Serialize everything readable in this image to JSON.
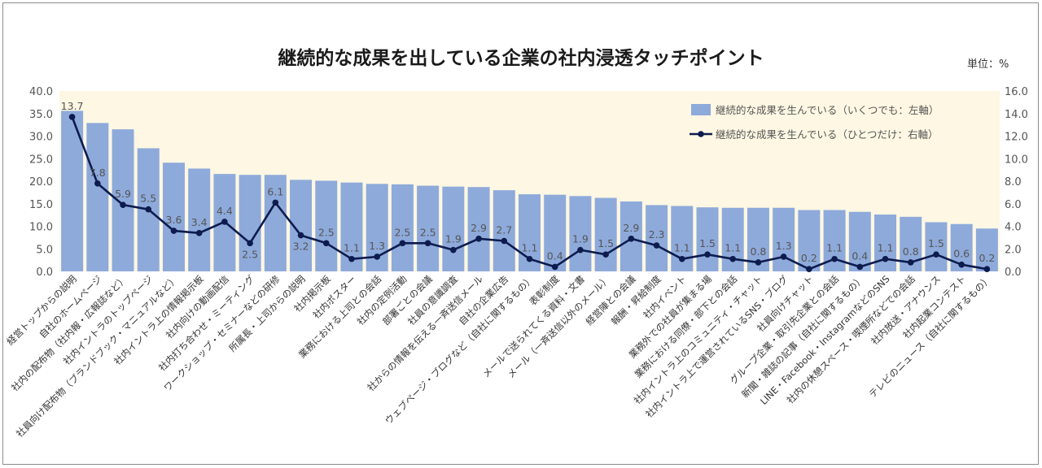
{
  "chart_data": {
    "type": "bar",
    "title": "継続的な成果を出している企業の社内浸透タッチポイント",
    "unit_label": "単位：%",
    "categories": [
      "経営トップからの説明",
      "自社のホームページ",
      "社内の配布物（社内報・広報誌など）",
      "社内イントラのトップページ",
      "社員向け配布物（ブランドブック・マニュアルなど）",
      "社内イントラ上の情報掲示板",
      "社内向けの動画配信",
      "社内打ち合わせ・ミーティング",
      "ワークショップ・セミナーなどの研修",
      "所属長・上司からの説明",
      "社内掲示板",
      "社内ポスター",
      "業務における上司との会話",
      "社内の定例活動",
      "部署ごとの会議",
      "社員の意識調査",
      "社からの情報を伝える一斉送信メール",
      "自社の企業広告",
      "ウェブページ・ブログなど（自社に関するもの）",
      "表彰制度",
      "メールで送られてくる資料・文書",
      "メール（一斉送信以外のメール）",
      "経営陣との会議",
      "報酬・昇給制度",
      "社内イベント",
      "業務外での社員が集まる場",
      "業務における同僚・部下との会話",
      "社内イントラ上のコミュニティ・チャット",
      "社内イントラ上で運営されているSNS・ブログ",
      "社員向けチャット",
      "グループ企業・取引先企業との会話",
      "新聞・雑誌の記事（自社に関するもの）",
      "LINE・Facebook・InstagramなどのSNS",
      "社内の休憩スペース・喫煙所などでの会話",
      "社内放送・アナウンス",
      "社内起業コンテスト",
      "テレビのニュース（自社に関するもの）"
    ],
    "series": [
      {
        "name": "継続的な成果を生んでいる（いくつでも：左軸）",
        "kind": "bar",
        "axis": "left",
        "color": "#8eaadb",
        "values": [
          35.6,
          32.9,
          31.5,
          27.3,
          24.1,
          22.8,
          21.6,
          21.4,
          21.4,
          20.3,
          20.1,
          19.7,
          19.4,
          19.3,
          19.0,
          18.8,
          18.7,
          18.0,
          17.1,
          17.0,
          16.7,
          16.3,
          15.5,
          14.7,
          14.5,
          14.2,
          14.1,
          14.1,
          14.1,
          13.6,
          13.6,
          13.2,
          12.6,
          12.1,
          10.9,
          10.5,
          9.5
        ]
      },
      {
        "name": "継続的な成果を生んでいる（ひとつだけ：右軸）",
        "kind": "line",
        "axis": "right",
        "color": "#0d1b4d",
        "values": [
          13.7,
          7.8,
          5.9,
          5.5,
          3.6,
          3.4,
          4.4,
          2.5,
          6.1,
          3.2,
          2.5,
          1.1,
          1.3,
          2.5,
          2.5,
          1.9,
          2.9,
          2.7,
          1.1,
          0.4,
          1.9,
          1.5,
          2.9,
          2.3,
          1.1,
          1.5,
          1.1,
          0.8,
          1.3,
          0.2,
          1.1,
          0.4,
          1.1,
          0.8,
          1.5,
          0.6,
          0.2
        ]
      }
    ],
    "line_labels": [
      "13.7",
      "7.8",
      "5.9",
      "5.5",
      "3.6",
      "3.4",
      "4.4",
      "2.5",
      "6.1",
      "3.2",
      "2.5",
      "1.1",
      "1.3",
      "2.5",
      "2.5",
      "1.9",
      "2.9",
      "2.7",
      "1.1",
      "0.4",
      "1.9",
      "1.5",
      "2.9",
      "2.3",
      "1.1",
      "1.5",
      "1.1",
      "0.8",
      "1.3",
      "0.2",
      "1.1",
      "0.4",
      "1.1",
      "0.8",
      "1.5",
      "0.6",
      "0.2"
    ],
    "y_left": {
      "min": 0,
      "max": 40,
      "step": 5,
      "tick_labels": [
        "0.0",
        "5.0",
        "10.0",
        "15.0",
        "20.0",
        "25.0",
        "30.0",
        "35.0",
        "40.0"
      ]
    },
    "y_right": {
      "min": 0,
      "max": 16,
      "step": 2,
      "tick_labels": [
        "0.0",
        "2.0",
        "4.0",
        "6.0",
        "8.0",
        "10.0",
        "12.0",
        "14.0",
        "16.0"
      ]
    },
    "grid": false,
    "legend_position": "top-right",
    "plot_background": "#fdf7e3"
  }
}
